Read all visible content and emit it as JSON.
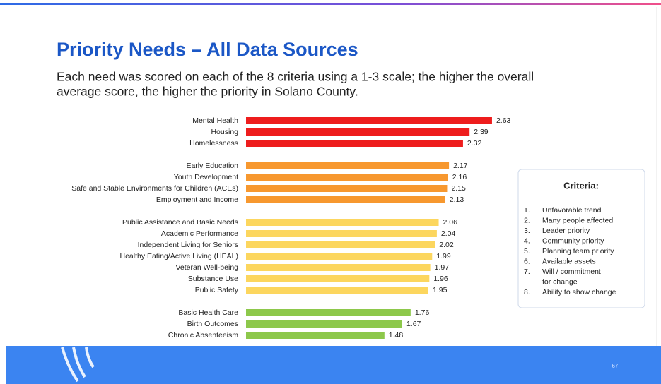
{
  "header": {
    "title": "Priority Needs – All Data Sources",
    "subtitle_lines": [
      "Each need was scored on each of the 8 criteria using a 1-3 scale;  the higher the overall",
      "average score, the higher the priority in Solano County."
    ]
  },
  "chart_data": {
    "type": "bar",
    "orientation": "horizontal",
    "categories": [
      "Mental Health",
      "Housing",
      "Homelessness",
      "Early Education",
      "Youth Development",
      "Safe and Stable Environments for Children (ACEs)",
      "Employment and Income",
      "Public Assistance and Basic Needs",
      "Academic Performance",
      "Independent Living for Seniors",
      "Healthy Eating/Active Living (HEAL)",
      "Veteran Well-being",
      "Substance Use",
      "Public Safety",
      "Basic Health Care",
      "Birth Outcomes",
      "Chronic Absenteeism"
    ],
    "values": [
      2.63,
      2.39,
      2.32,
      2.17,
      2.16,
      2.15,
      2.13,
      2.06,
      2.04,
      2.02,
      1.99,
      1.97,
      1.96,
      1.95,
      1.76,
      1.67,
      1.48
    ],
    "colors": [
      "#ee1d1d",
      "#ee1d1d",
      "#ee1d1d",
      "#f7982f",
      "#f7982f",
      "#f7982f",
      "#f7982f",
      "#fcd65e",
      "#fcd65e",
      "#fcd65e",
      "#fcd65e",
      "#fcd65e",
      "#fcd65e",
      "#fcd65e",
      "#8dc84b",
      "#8dc84b",
      "#8dc84b"
    ]
  },
  "criteria": {
    "title": "Criteria:",
    "items": [
      {
        "number": "1.",
        "lines": [
          "Unfavorable trend"
        ]
      },
      {
        "number": "2.",
        "lines": [
          "Many people affected"
        ]
      },
      {
        "number": "3.",
        "lines": [
          "Leader priority"
        ]
      },
      {
        "number": "4.",
        "lines": [
          "Community priority"
        ]
      },
      {
        "number": "5.",
        "lines": [
          "Planning team priority"
        ]
      },
      {
        "number": "6.",
        "lines": [
          "Available assets"
        ]
      },
      {
        "number": "7.",
        "lines": [
          "Will  / commitment",
          "for change"
        ]
      },
      {
        "number": "8.",
        "lines": [
          "Ability to show change"
        ]
      }
    ]
  },
  "footer": {
    "page_number": "67"
  }
}
